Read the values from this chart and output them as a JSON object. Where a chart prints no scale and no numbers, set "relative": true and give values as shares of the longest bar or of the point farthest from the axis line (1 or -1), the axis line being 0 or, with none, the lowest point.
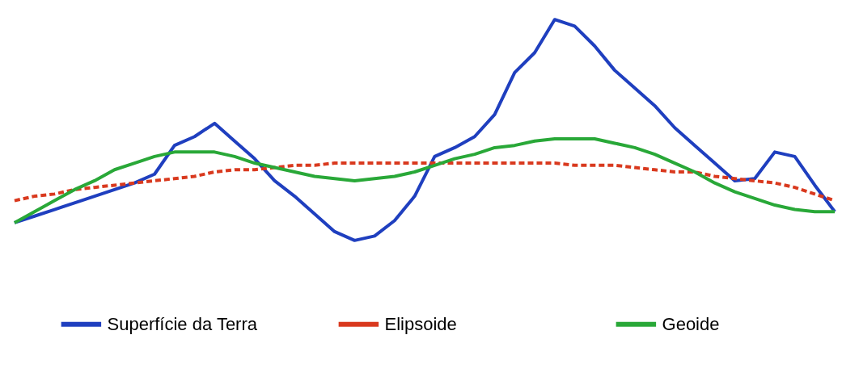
{
  "chart_data": {
    "type": "line",
    "relative": true,
    "legend": "bottom",
    "grid": false,
    "categories": [
      null,
      null,
      null,
      null,
      null,
      null,
      null,
      null,
      null,
      null,
      null,
      null,
      null,
      null,
      null,
      null,
      null,
      null,
      null,
      null,
      null,
      null,
      null,
      null,
      null,
      null,
      null,
      null,
      null,
      null,
      null,
      null,
      null,
      null,
      null,
      null,
      null,
      null,
      null,
      null,
      null,
      null
    ],
    "series": [
      {
        "name": "Superfície da Terra",
        "color": "#1f3fbf",
        "line_style": "solid",
        "values": [
          0.08,
          0.11,
          0.14,
          0.17,
          0.2,
          0.23,
          0.26,
          0.3,
          0.43,
          0.47,
          0.53,
          0.45,
          0.37,
          0.27,
          0.2,
          0.12,
          0.04,
          0,
          0.02,
          0.09,
          0.2,
          0.38,
          0.42,
          0.47,
          0.57,
          0.76,
          0.85,
          1,
          0.97,
          0.88,
          0.77,
          0.69,
          0.61,
          0.51,
          0.43,
          0.35,
          0.27,
          0.28,
          0.4,
          0.38,
          0.25,
          0.13
        ]
      },
      {
        "name": "Elipsoide",
        "color": "#d9391e",
        "line_style": "dashed",
        "values": [
          0.18,
          0.2,
          0.21,
          0.23,
          0.24,
          0.25,
          0.26,
          0.27,
          0.28,
          0.29,
          0.31,
          0.32,
          0.32,
          0.33,
          0.34,
          0.34,
          0.35,
          0.35,
          0.35,
          0.35,
          0.35,
          0.35,
          0.35,
          0.35,
          0.35,
          0.35,
          0.35,
          0.35,
          0.34,
          0.34,
          0.34,
          0.33,
          0.32,
          0.31,
          0.31,
          0.29,
          0.28,
          0.27,
          0.26,
          0.24,
          0.21,
          0.18
        ]
      },
      {
        "name": "Geoide",
        "color": "#29a838",
        "line_style": "solid",
        "values": [
          0.08,
          0.13,
          0.18,
          0.23,
          0.27,
          0.32,
          0.35,
          0.38,
          0.4,
          0.4,
          0.4,
          0.38,
          0.35,
          0.33,
          0.31,
          0.29,
          0.28,
          0.27,
          0.28,
          0.29,
          0.31,
          0.34,
          0.37,
          0.39,
          0.42,
          0.43,
          0.45,
          0.46,
          0.46,
          0.46,
          0.44,
          0.42,
          0.39,
          0.35,
          0.31,
          0.26,
          0.22,
          0.19,
          0.16,
          0.14,
          0.13,
          0.13
        ]
      }
    ]
  }
}
